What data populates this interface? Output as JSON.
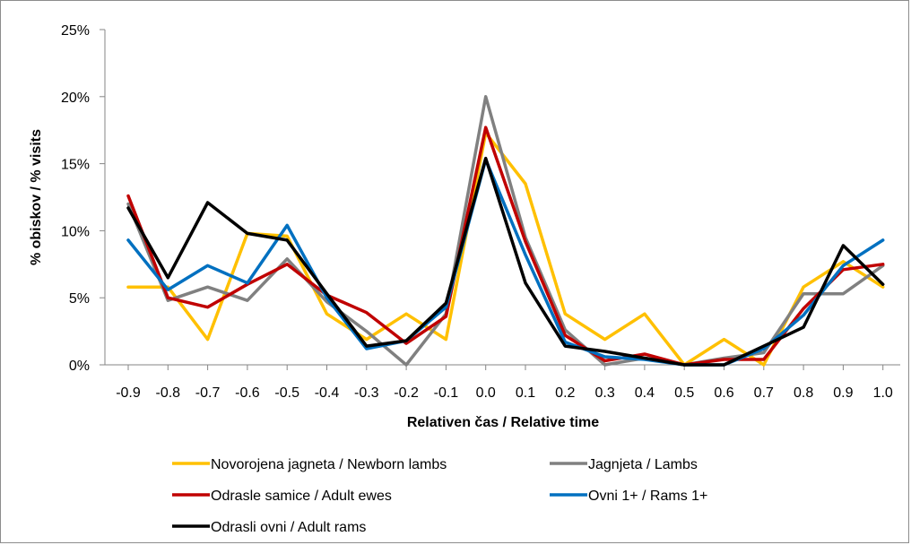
{
  "chart_data": {
    "type": "line",
    "xlabel": "Relativen čas / Relative time",
    "ylabel": "% obiskov / % visits",
    "x": [
      "-0.9",
      "-0.8",
      "-0.7",
      "-0.6",
      "-0.5",
      "-0.4",
      "-0.3",
      "-0.2",
      "-0.1",
      "0.0",
      "0.1",
      "0.2",
      "0.3",
      "0.4",
      "0.5",
      "0.6",
      "0.7",
      "0.8",
      "0.9",
      "1.0"
    ],
    "y_ticks": [
      "0%",
      "5%",
      "10%",
      "15%",
      "20%",
      "25%"
    ],
    "ylim": [
      0,
      25
    ],
    "grid": false,
    "legend_position": "bottom",
    "series": [
      {
        "name": "Novorojena jagneta / Newborn lambs",
        "color": "#FFC000",
        "values": [
          5.8,
          5.8,
          1.9,
          9.8,
          9.6,
          3.8,
          1.9,
          3.8,
          1.9,
          17.3,
          13.5,
          3.8,
          1.9,
          3.8,
          0.0,
          1.9,
          0.0,
          5.8,
          7.7,
          5.8
        ]
      },
      {
        "name": "Jagnjeta / Lambs",
        "color": "#808080",
        "values": [
          12.0,
          4.8,
          5.8,
          4.8,
          7.9,
          4.7,
          2.5,
          0.0,
          3.8,
          20.0,
          9.5,
          2.6,
          0.0,
          0.5,
          0.0,
          0.5,
          0.9,
          5.3,
          5.3,
          7.4
        ]
      },
      {
        "name": "Odrasle samice / Adult ewes",
        "color": "#C00000",
        "values": [
          12.6,
          5.0,
          4.3,
          6.0,
          7.5,
          5.2,
          3.9,
          1.6,
          3.6,
          17.7,
          9.2,
          2.2,
          0.3,
          0.8,
          0.0,
          0.4,
          0.4,
          4.2,
          7.1,
          7.5
        ]
      },
      {
        "name": "Ovni 1+ / Rams 1+",
        "color": "#0070C0",
        "values": [
          9.3,
          5.6,
          7.4,
          6.1,
          10.4,
          5.0,
          1.2,
          1.8,
          4.3,
          15.3,
          8.2,
          1.7,
          0.6,
          0.4,
          0.0,
          0.0,
          1.2,
          3.7,
          7.4,
          9.3
        ]
      },
      {
        "name": "Odrasli ovni / Adult rams",
        "color": "#000000",
        "values": [
          11.7,
          6.5,
          12.1,
          9.8,
          9.3,
          5.3,
          1.4,
          1.8,
          4.6,
          15.4,
          6.1,
          1.4,
          1.0,
          0.5,
          0.0,
          0.0,
          1.4,
          2.8,
          8.9,
          6.0
        ]
      }
    ]
  }
}
